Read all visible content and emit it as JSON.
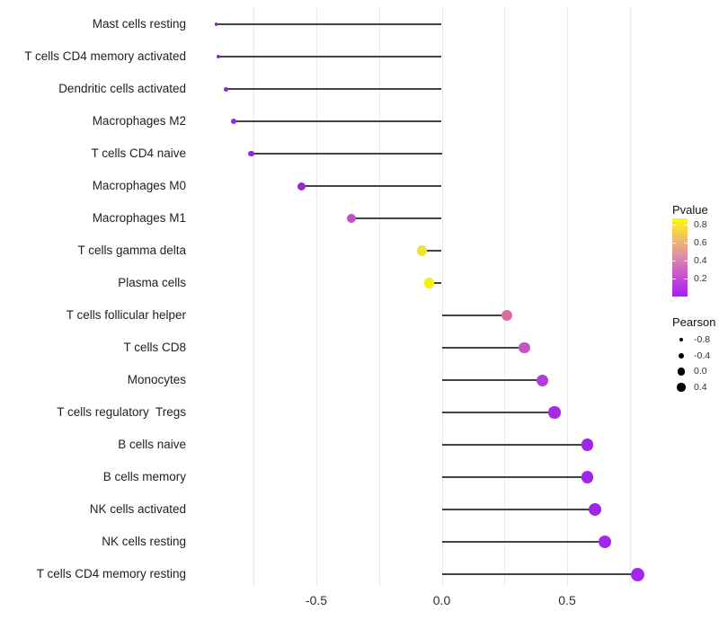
{
  "chart_data": {
    "type": "scatter",
    "subtype": "lollipop",
    "title": "",
    "xlabel": "",
    "ylabel": "",
    "xlim": [
      -0.99,
      0.87
    ],
    "grid": "vertical-only",
    "gridline_values": [
      -0.75,
      -0.5,
      -0.25,
      0,
      0.25,
      0.5,
      0.75
    ],
    "x_ticks": [
      {
        "value": -0.5,
        "label": "-0.5"
      },
      {
        "value": 0.0,
        "label": "0.0"
      },
      {
        "value": 0.5,
        "label": "0.5"
      }
    ],
    "points": [
      {
        "name": "Mast cells resting",
        "pearson": -0.9,
        "color": "#8C22DE",
        "radius": 1.8
      },
      {
        "name": "T cells CD4 memory activated",
        "pearson": -0.89,
        "color": "#8D23DF",
        "radius": 2.1
      },
      {
        "name": "Dendritic cells activated",
        "pearson": -0.86,
        "color": "#9026E0",
        "radius": 2.5
      },
      {
        "name": "Macrophages M2",
        "pearson": -0.83,
        "color": "#9127E0",
        "radius": 2.9
      },
      {
        "name": "T cells CD4 naive",
        "pearson": -0.76,
        "color": "#9126E0",
        "radius": 3.4
      },
      {
        "name": "Macrophages M0",
        "pearson": -0.56,
        "color": "#9227DB",
        "radius": 4.5
      },
      {
        "name": "Macrophages M1",
        "pearson": -0.36,
        "color": "#C24FC7",
        "radius": 5.0
      },
      {
        "name": "T cells gamma delta",
        "pearson": -0.08,
        "color": "#EEE23A",
        "radius": 5.6
      },
      {
        "name": "Plasma cells",
        "pearson": -0.05,
        "color": "#F6EE15",
        "radius": 5.7
      },
      {
        "name": "T cells follicular helper",
        "pearson": 0.26,
        "color": "#DB6CA2",
        "radius": 6.0
      },
      {
        "name": "T cells CD8",
        "pearson": 0.33,
        "color": "#C455C8",
        "radius": 6.2
      },
      {
        "name": "Monocytes",
        "pearson": 0.4,
        "color": "#B23DD8",
        "radius": 6.5
      },
      {
        "name": "T cells regulatory  Tregs",
        "pearson": 0.45,
        "color": "#A52BE2",
        "radius": 6.6
      },
      {
        "name": "B cells naive",
        "pearson": 0.58,
        "color": "#9F26E6",
        "radius": 6.8
      },
      {
        "name": "B cells memory",
        "pearson": 0.58,
        "color": "#9F26E6",
        "radius": 6.8
      },
      {
        "name": "NK cells activated",
        "pearson": 0.61,
        "color": "#A026E6",
        "radius": 7.0
      },
      {
        "name": "NK cells resting",
        "pearson": 0.65,
        "color": "#A227E8",
        "radius": 7.2
      },
      {
        "name": "T cells CD4 memory resting",
        "pearson": 0.78,
        "color": "#A527EA",
        "radius": 7.5
      }
    ],
    "legends": {
      "pvalue": {
        "title": "Pvalue",
        "gradient_stops": [
          "#A81CF4 0%",
          "#BC40DE 18%",
          "#CC60C6 33%",
          "#DC85B0 48%",
          "#E9A687 63%",
          "#F2C75A 78%",
          "#F9E52B 91%",
          "#FDF514 100%"
        ],
        "ticks": [
          {
            "label": "0.8",
            "frac_from_bottom": 0.92
          },
          {
            "label": "0.6",
            "frac_from_bottom": 0.685
          },
          {
            "label": "0.4",
            "frac_from_bottom": 0.455
          },
          {
            "label": "0.2",
            "frac_from_bottom": 0.23
          }
        ]
      },
      "pearson": {
        "title": "Pearson",
        "items": [
          {
            "label": "-0.8",
            "radius": 2.2
          },
          {
            "label": "-0.4",
            "radius": 3.2
          },
          {
            "label": "0.0",
            "radius": 4.2
          },
          {
            "label": "0.4",
            "radius": 4.7
          }
        ]
      }
    }
  }
}
